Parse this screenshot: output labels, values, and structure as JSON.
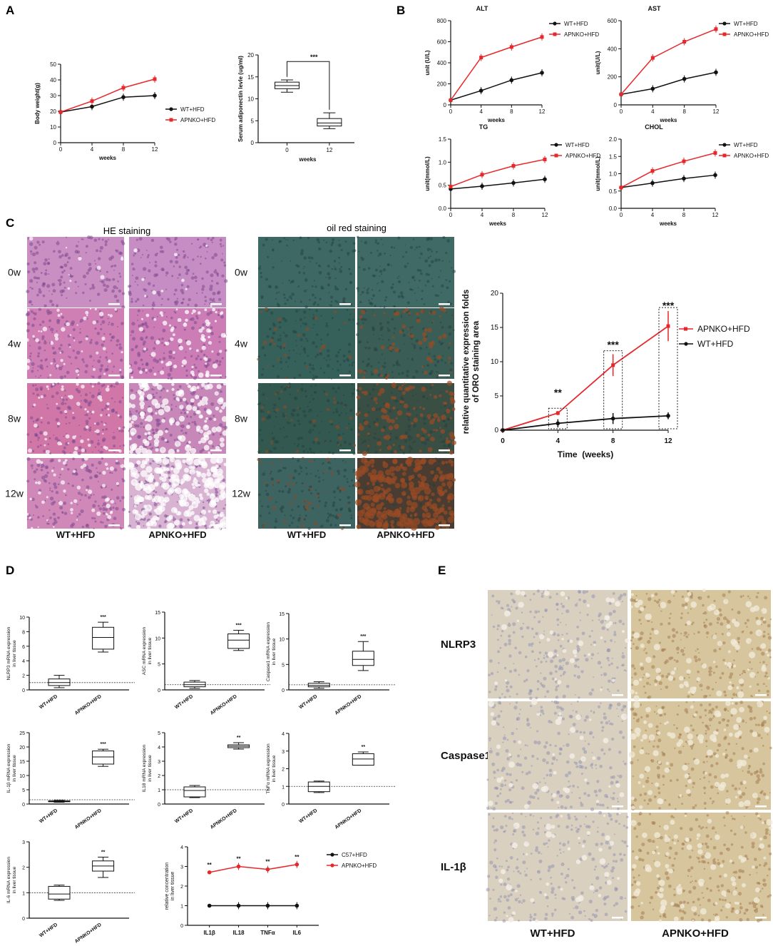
{
  "panels": {
    "A": "A",
    "B": "B",
    "C": "C",
    "D": "D",
    "E": "E"
  },
  "colors": {
    "wt": "#111111",
    "ko": "#e8272b"
  },
  "common": {
    "weeks": "weeks",
    "wt_hfd": "WT+HFD",
    "apnko_hfd": "APNKO+HFD",
    "c57_hfd": "C57+HFD",
    "liver_tissue": "in liver tissue"
  },
  "C": {
    "he_title": "HE staining",
    "oil_title": "oil red staining",
    "rows": [
      "0w",
      "4w",
      "8w",
      "12w"
    ],
    "col_wt": "WT+HFD",
    "col_ko": "APNKO+HFD"
  },
  "E": {
    "rows": [
      "NLRP3",
      "Caspase1",
      "IL-1β"
    ],
    "col_wt": "WT+HFD",
    "col_ko": "APNKO+HFD"
  },
  "chart_data": [
    {
      "id": "A1",
      "type": "line",
      "ylabel": "Body weight(g)",
      "xlabel": "weeks",
      "xlim": [
        0,
        12
      ],
      "ylim": [
        0,
        50
      ],
      "x": [
        0,
        4,
        8,
        12
      ],
      "yticks": [
        0,
        10,
        20,
        30,
        40,
        50
      ],
      "series": [
        {
          "name": "WT+HFD",
          "values": [
            19.5,
            23,
            29,
            30
          ]
        },
        {
          "name": "APNKO+HFD",
          "values": [
            19.5,
            26.5,
            35,
            40.5
          ]
        }
      ],
      "legend": "right"
    },
    {
      "id": "A2",
      "type": "box",
      "ylabel": "Serum adiponectin levle (ug/ml)",
      "xlabel": "weeks",
      "ylim": [
        0,
        20
      ],
      "yticks": [
        0,
        5,
        10,
        15,
        20
      ],
      "categories": [
        "0",
        "12"
      ],
      "boxes": [
        [
          11.5,
          12.3,
          13,
          13.8,
          14.3
        ],
        [
          3.2,
          3.8,
          4.5,
          5.5,
          6.8
        ]
      ],
      "significance": "***"
    },
    {
      "id": "B1",
      "type": "line",
      "title": "ALT",
      "ylabel": "unit (U/L)",
      "xlabel": "weeks",
      "ylim": [
        0,
        800
      ],
      "xlim": [
        0,
        12
      ],
      "x": [
        0,
        4,
        8,
        12
      ],
      "yticks": [
        0,
        200,
        400,
        600,
        800
      ],
      "series": [
        {
          "name": "WT+HFD",
          "values": [
            45,
            135,
            235,
            305
          ]
        },
        {
          "name": "APNKO+HFD",
          "values": [
            45,
            450,
            550,
            645
          ]
        }
      ],
      "legend": "top-right"
    },
    {
      "id": "B2",
      "type": "line",
      "title": "AST",
      "ylabel": "unit(U/L)",
      "xlabel": "weeks",
      "ylim": [
        0,
        600
      ],
      "xlim": [
        0,
        12
      ],
      "x": [
        0,
        4,
        8,
        12
      ],
      "yticks": [
        0,
        200,
        400,
        600
      ],
      "series": [
        {
          "name": "WT+HFD",
          "values": [
            75,
            115,
            185,
            232
          ]
        },
        {
          "name": "APNKO+HFD",
          "values": [
            75,
            335,
            450,
            540
          ]
        }
      ],
      "legend": "top-right"
    },
    {
      "id": "B3",
      "type": "line",
      "title": "TG",
      "ylabel": "unit(mmol/L)",
      "xlabel": "weeks",
      "ylim": [
        0,
        1.5
      ],
      "xlim": [
        0,
        12
      ],
      "x": [
        0,
        4,
        8,
        12
      ],
      "yticks": [
        0,
        0.5,
        1.0,
        1.5
      ],
      "ytick_labels": [
        "0.0",
        "0.5",
        "1.0",
        "1.5"
      ],
      "series": [
        {
          "name": "WT+HFD",
          "values": [
            0.42,
            0.48,
            0.55,
            0.63
          ]
        },
        {
          "name": "APNKO+HFD",
          "values": [
            0.47,
            0.73,
            0.92,
            1.06
          ]
        }
      ],
      "legend": "top-right"
    },
    {
      "id": "B4",
      "type": "line",
      "title": "CHOL",
      "ylabel": "unit(mmol/L)",
      "xlabel": "weeks",
      "ylim": [
        0,
        2.0
      ],
      "xlim": [
        0,
        12
      ],
      "x": [
        0,
        4,
        8,
        12
      ],
      "yticks": [
        0,
        0.5,
        1.0,
        1.5,
        2.0
      ],
      "ytick_labels": [
        "0.0",
        "0.5",
        "1.0",
        "1.5",
        "2.0"
      ],
      "series": [
        {
          "name": "WT+HFD",
          "values": [
            0.6,
            0.73,
            0.86,
            0.96
          ]
        },
        {
          "name": "APNKO+HFD",
          "values": [
            0.6,
            1.08,
            1.36,
            1.6
          ]
        }
      ],
      "legend": "top-right"
    },
    {
      "id": "C1",
      "type": "line",
      "ylabel": "relative quantitative expression folds of ORO staining area",
      "xlabel": "Time  (weeks)",
      "ylim": [
        0,
        20
      ],
      "xlim": [
        0,
        12
      ],
      "x": [
        0,
        4,
        8,
        12
      ],
      "yticks": [
        0,
        5,
        10,
        15,
        20
      ],
      "series": [
        {
          "name": "APNKO+HFD",
          "values": [
            0,
            2.5,
            9.5,
            15.2
          ]
        },
        {
          "name": "WT+HFD",
          "values": [
            0,
            1,
            1.7,
            2.1
          ]
        }
      ],
      "significance": [
        "",
        "**",
        "***",
        "***"
      ],
      "legend": "right"
    },
    {
      "id": "D1",
      "type": "box",
      "ylabel": "NLRP3 mRNA expression in liver tissue",
      "ylim": [
        0,
        10
      ],
      "yticks": [
        0,
        2,
        4,
        6,
        8,
        10
      ],
      "categories": [
        "WT+HFD",
        "APNKO+HFD"
      ],
      "boxes": [
        [
          0.3,
          0.6,
          1.0,
          1.5,
          2.0
        ],
        [
          5.2,
          5.6,
          7.2,
          8.6,
          9.3
        ]
      ],
      "significance": "***",
      "ref": 1
    },
    {
      "id": "D2",
      "type": "box",
      "ylabel": "ASC mRNA expression in liver tissue",
      "ylim": [
        0,
        15
      ],
      "yticks": [
        0,
        5,
        10,
        15
      ],
      "categories": [
        "WT+HFD",
        "APNKO+HFD"
      ],
      "boxes": [
        [
          0.3,
          0.6,
          1.0,
          1.5,
          1.8
        ],
        [
          7.6,
          8.0,
          9.6,
          10.8,
          11.5
        ]
      ],
      "significance": "***",
      "ref": 1
    },
    {
      "id": "D3",
      "type": "box",
      "ylabel": "Caspase1 mRNA expression in liver tissue",
      "ylim": [
        0,
        15
      ],
      "yticks": [
        0,
        5,
        10,
        15
      ],
      "categories": [
        "WT+HFD",
        "APNKO+HFD"
      ],
      "boxes": [
        [
          0.3,
          0.6,
          0.9,
          1.3,
          1.6
        ],
        [
          3.8,
          4.8,
          6.0,
          7.6,
          9.5
        ]
      ],
      "significance": "***",
      "ref": 1
    },
    {
      "id": "D4",
      "type": "box",
      "ylabel": "IL-1β mRNA expression in liver tissue",
      "ylim": [
        0,
        25
      ],
      "yticks": [
        0,
        5,
        10,
        15,
        20,
        25
      ],
      "categories": [
        "WT+HFD",
        "APNKO+HFD"
      ],
      "boxes": [
        [
          0.6,
          0.8,
          0.95,
          1.1,
          1.3
        ],
        [
          13.2,
          14.0,
          16.5,
          18.6,
          19.2
        ]
      ],
      "significance": "***",
      "ref": 1.5
    },
    {
      "id": "D5",
      "type": "box",
      "ylabel": "IL18 mRNA expression in liver tissue",
      "ylim": [
        0,
        5
      ],
      "yticks": [
        0,
        1,
        2,
        3,
        4,
        5
      ],
      "categories": [
        "WT+HFD",
        "APNKO+HFD"
      ],
      "boxes": [
        [
          0.45,
          0.5,
          0.95,
          1.2,
          1.3
        ],
        [
          3.85,
          3.95,
          4.05,
          4.15,
          4.3
        ]
      ],
      "significance": "**",
      "ref": 1
    },
    {
      "id": "D6",
      "type": "box",
      "ylabel": "TNFα mRNA expression in liver tissue",
      "ylim": [
        0,
        4
      ],
      "yticks": [
        0,
        1,
        2,
        3,
        4
      ],
      "categories": [
        "WT+HFD",
        "APNKO+HFD"
      ],
      "boxes": [
        [
          0.65,
          0.7,
          1.0,
          1.25,
          1.3
        ],
        [
          2.2,
          2.2,
          2.55,
          2.85,
          2.95
        ]
      ],
      "significance": "**",
      "ref": 1
    },
    {
      "id": "D7",
      "type": "box",
      "ylabel": "IL-6 mRNA expression in liver tissue",
      "ylim": [
        0,
        3
      ],
      "yticks": [
        0,
        1,
        2,
        3
      ],
      "categories": [
        "WT+HFD",
        "APNKO+HFD"
      ],
      "boxes": [
        [
          0.7,
          0.75,
          0.95,
          1.25,
          1.3
        ],
        [
          1.6,
          1.85,
          2.05,
          2.25,
          2.4
        ]
      ],
      "significance": "**",
      "ref": 1
    },
    {
      "id": "D8",
      "type": "line",
      "ylabel": "relative concentration in liver tissue",
      "ylim": [
        0,
        4
      ],
      "yticks": [
        0,
        1,
        2,
        3,
        4
      ],
      "categories": [
        "IL1β",
        "IL18",
        "TNFα",
        "IL6"
      ],
      "series": [
        {
          "name": "C57+HFD",
          "values": [
            1,
            1,
            1,
            1
          ]
        },
        {
          "name": "APNKO+HFD",
          "values": [
            2.7,
            3.0,
            2.85,
            3.1
          ]
        }
      ],
      "significance": [
        "**",
        "**",
        "**",
        "**"
      ],
      "legend": "right"
    }
  ]
}
